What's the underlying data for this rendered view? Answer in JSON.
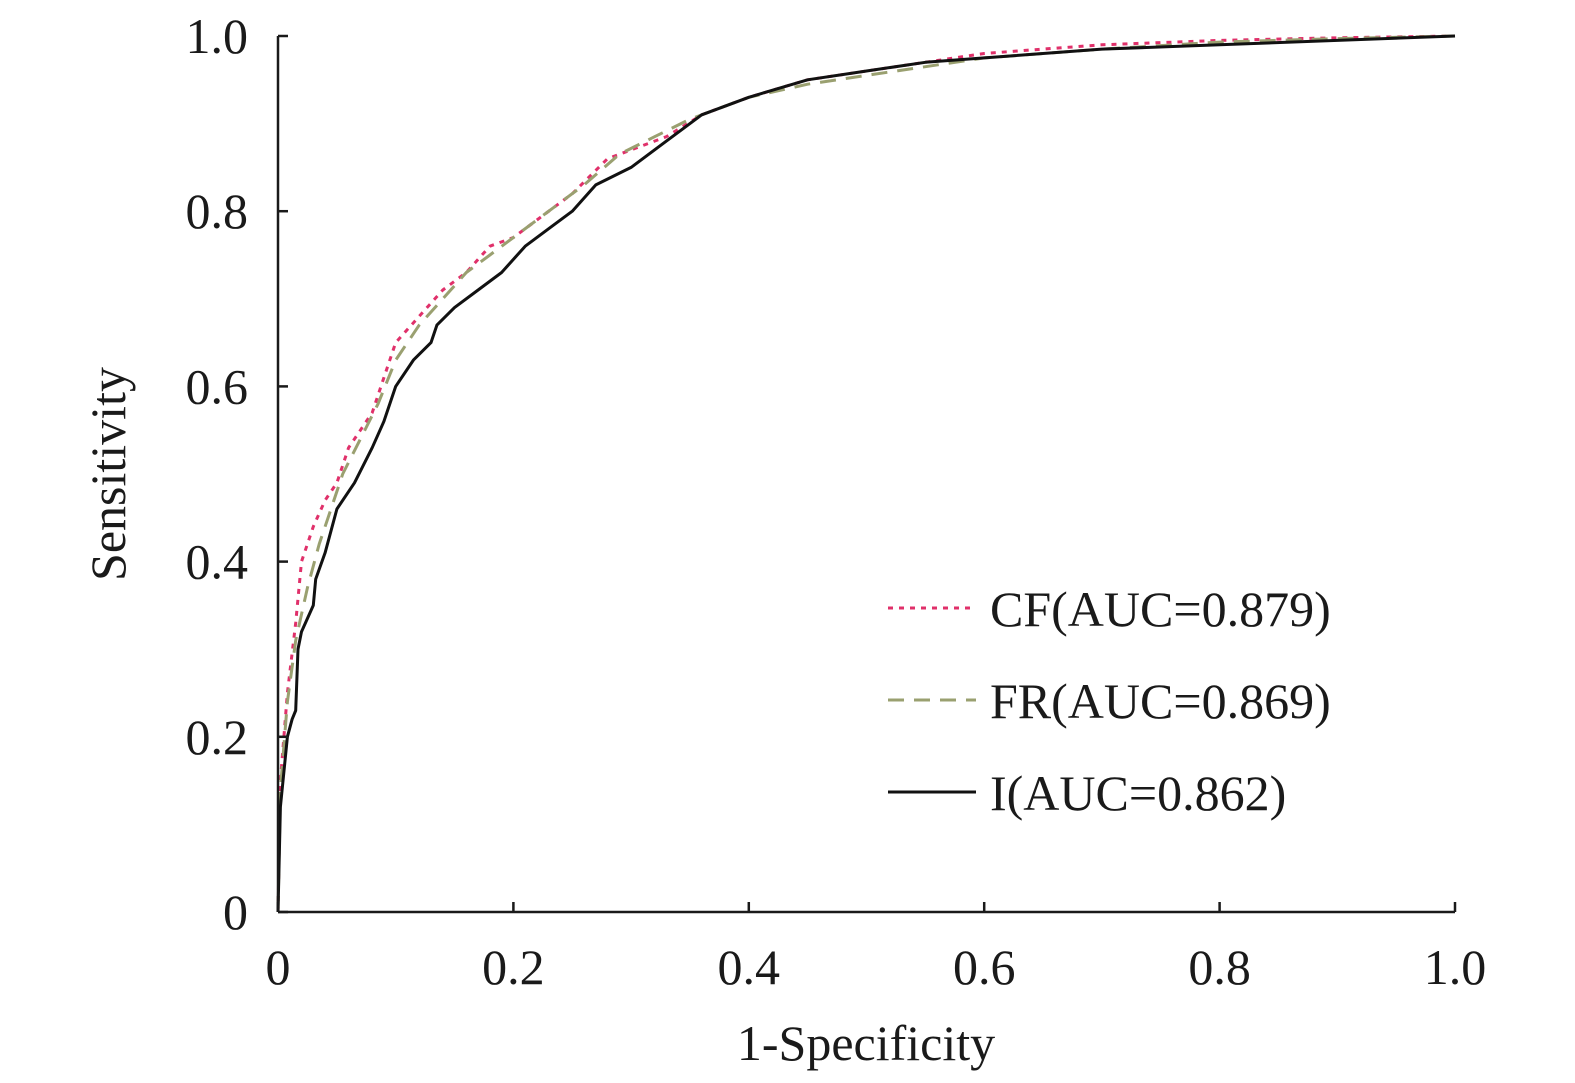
{
  "chart_data": {
    "type": "line",
    "title": "",
    "xlabel": "1-Specificity",
    "ylabel": "Sensitivity",
    "xlim": [
      0,
      1
    ],
    "ylim": [
      0,
      1
    ],
    "x_ticks": [
      0,
      0.2,
      0.4,
      0.6,
      0.8,
      1.0
    ],
    "x_tick_labels": [
      "0",
      "0.2",
      "0.4",
      "0.6",
      "0.8",
      "1.0"
    ],
    "y_ticks": [
      0,
      0.2,
      0.4,
      0.6,
      0.8,
      1.0
    ],
    "y_tick_labels": [
      "0",
      "0.2",
      "0.4",
      "0.6",
      "0.8",
      "1.0"
    ],
    "grid": false,
    "legend_position": "bottom-right",
    "series": [
      {
        "name": "CF(AUC=0.879)",
        "color": "#e0306a",
        "style": "dotted",
        "points": [
          [
            0,
            0
          ],
          [
            0.002,
            0.15
          ],
          [
            0.008,
            0.25
          ],
          [
            0.015,
            0.33
          ],
          [
            0.02,
            0.4
          ],
          [
            0.03,
            0.44
          ],
          [
            0.04,
            0.47
          ],
          [
            0.05,
            0.49
          ],
          [
            0.06,
            0.53
          ],
          [
            0.07,
            0.55
          ],
          [
            0.08,
            0.57
          ],
          [
            0.09,
            0.61
          ],
          [
            0.1,
            0.65
          ],
          [
            0.12,
            0.68
          ],
          [
            0.14,
            0.71
          ],
          [
            0.16,
            0.73
          ],
          [
            0.18,
            0.76
          ],
          [
            0.2,
            0.77
          ],
          [
            0.22,
            0.79
          ],
          [
            0.25,
            0.82
          ],
          [
            0.28,
            0.86
          ],
          [
            0.3,
            0.87
          ],
          [
            0.33,
            0.885
          ],
          [
            0.36,
            0.91
          ],
          [
            0.4,
            0.93
          ],
          [
            0.45,
            0.95
          ],
          [
            0.5,
            0.96
          ],
          [
            0.55,
            0.97
          ],
          [
            0.6,
            0.98
          ],
          [
            0.65,
            0.985
          ],
          [
            0.7,
            0.99
          ],
          [
            0.8,
            0.995
          ],
          [
            0.9,
            0.998
          ],
          [
            1.0,
            1.0
          ]
        ]
      },
      {
        "name": "FR(AUC=0.869)",
        "color": "#9aa070",
        "style": "dashed",
        "points": [
          [
            0,
            0
          ],
          [
            0.002,
            0.14
          ],
          [
            0.008,
            0.24
          ],
          [
            0.015,
            0.31
          ],
          [
            0.025,
            0.37
          ],
          [
            0.035,
            0.42
          ],
          [
            0.045,
            0.46
          ],
          [
            0.055,
            0.5
          ],
          [
            0.07,
            0.54
          ],
          [
            0.085,
            0.58
          ],
          [
            0.1,
            0.63
          ],
          [
            0.12,
            0.67
          ],
          [
            0.14,
            0.7
          ],
          [
            0.16,
            0.73
          ],
          [
            0.18,
            0.75
          ],
          [
            0.2,
            0.77
          ],
          [
            0.23,
            0.8
          ],
          [
            0.26,
            0.83
          ],
          [
            0.29,
            0.865
          ],
          [
            0.32,
            0.885
          ],
          [
            0.35,
            0.905
          ],
          [
            0.4,
            0.93
          ],
          [
            0.45,
            0.945
          ],
          [
            0.5,
            0.955
          ],
          [
            0.55,
            0.965
          ],
          [
            0.6,
            0.975
          ],
          [
            0.65,
            0.98
          ],
          [
            0.7,
            0.985
          ],
          [
            0.8,
            0.993
          ],
          [
            0.9,
            0.997
          ],
          [
            1.0,
            1.0
          ]
        ]
      },
      {
        "name": "I(AUC=0.862)",
        "color": "#111111",
        "style": "solid",
        "points": [
          [
            0,
            0
          ],
          [
            0.002,
            0.12
          ],
          [
            0.008,
            0.2
          ],
          [
            0.012,
            0.22
          ],
          [
            0.015,
            0.23
          ],
          [
            0.017,
            0.3
          ],
          [
            0.02,
            0.32
          ],
          [
            0.03,
            0.35
          ],
          [
            0.032,
            0.38
          ],
          [
            0.04,
            0.41
          ],
          [
            0.05,
            0.46
          ],
          [
            0.065,
            0.49
          ],
          [
            0.08,
            0.53
          ],
          [
            0.09,
            0.56
          ],
          [
            0.1,
            0.6
          ],
          [
            0.115,
            0.63
          ],
          [
            0.13,
            0.65
          ],
          [
            0.135,
            0.67
          ],
          [
            0.15,
            0.69
          ],
          [
            0.17,
            0.71
          ],
          [
            0.19,
            0.73
          ],
          [
            0.21,
            0.76
          ],
          [
            0.23,
            0.78
          ],
          [
            0.25,
            0.8
          ],
          [
            0.27,
            0.83
          ],
          [
            0.3,
            0.85
          ],
          [
            0.33,
            0.88
          ],
          [
            0.36,
            0.91
          ],
          [
            0.4,
            0.93
          ],
          [
            0.45,
            0.95
          ],
          [
            0.5,
            0.96
          ],
          [
            0.55,
            0.97
          ],
          [
            0.6,
            0.975
          ],
          [
            0.7,
            0.985
          ],
          [
            0.8,
            0.99
          ],
          [
            0.9,
            0.995
          ],
          [
            1.0,
            1.0
          ]
        ]
      }
    ]
  }
}
